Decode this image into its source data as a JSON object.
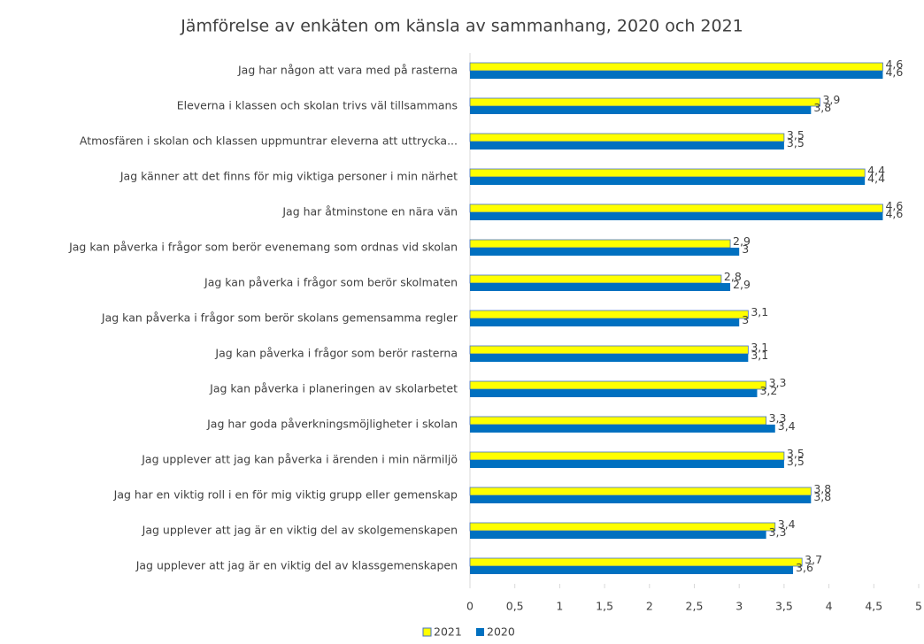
{
  "chart_data": {
    "type": "hbar",
    "title": "Jämförelse av enkäten om känsla av sammanhang, 2020 och 2021",
    "categories": [
      "Jag har någon att vara med på rasterna",
      "Eleverna i klassen och skolan trivs väl tillsammans",
      "Atmosfären i skolan och klassen uppmuntrar eleverna att uttrycka...",
      "Jag känner att det finns för mig viktiga personer i min närhet",
      "Jag har åtminstone en nära vän",
      "Jag kan påverka i frågor som berör evenemang som ordnas vid skolan",
      "Jag kan påverka i frågor som berör skolmaten",
      "Jag kan påverka i frågor som berör skolans gemensamma regler",
      "Jag kan påverka i frågor som berör rasterna",
      "Jag kan påverka i planeringen av skolarbetet",
      "Jag har goda påverkningsmöjligheter i skolan",
      "Jag upplever att jag kan påverka i ärenden i min närmiljö",
      "Jag har en viktig roll i en för mig viktig grupp eller gemenskap",
      "Jag upplever att jag är en viktig del av skolgemenskapen",
      "Jag upplever att jag är en viktig del av klassgemenskapen"
    ],
    "series": [
      {
        "name": "2021",
        "color": "#ffff00",
        "values": [
          4.6,
          3.9,
          3.5,
          4.4,
          4.6,
          2.9,
          2.8,
          3.1,
          3.1,
          3.3,
          3.3,
          3.5,
          3.8,
          3.4,
          3.7
        ],
        "value_labels": [
          "4,6",
          "3,9",
          "3,5",
          "4,4",
          "4,6",
          "2,9",
          "2,8",
          "3,1",
          "3,1",
          "3,3",
          "3,3",
          "3,5",
          "3,8",
          "3,4",
          "3,7"
        ]
      },
      {
        "name": "2020",
        "color": "#0070c0",
        "values": [
          4.6,
          3.8,
          3.5,
          4.4,
          4.6,
          3,
          2.9,
          3,
          3.1,
          3.2,
          3.4,
          3.5,
          3.8,
          3.3,
          3.6
        ],
        "value_labels": [
          "4,6",
          "3,8",
          "3,5",
          "4,4",
          "4,6",
          "3",
          "2,9",
          "3",
          "3,1",
          "3,2",
          "3,4",
          "3,5",
          "3,8",
          "3,3",
          "3,6"
        ]
      }
    ],
    "xlim": [
      0,
      5
    ],
    "xticks": [
      0,
      {
        "value": 0.5,
        "label": "0,5"
      },
      1,
      {
        "value": 1.5,
        "label": "1,5"
      },
      2,
      {
        "value": 2.5,
        "label": "2,5"
      },
      3,
      {
        "value": 3.5,
        "label": "3,5"
      },
      4,
      {
        "value": 4.5,
        "label": "4,5"
      },
      5
    ],
    "legend": "bottom"
  }
}
